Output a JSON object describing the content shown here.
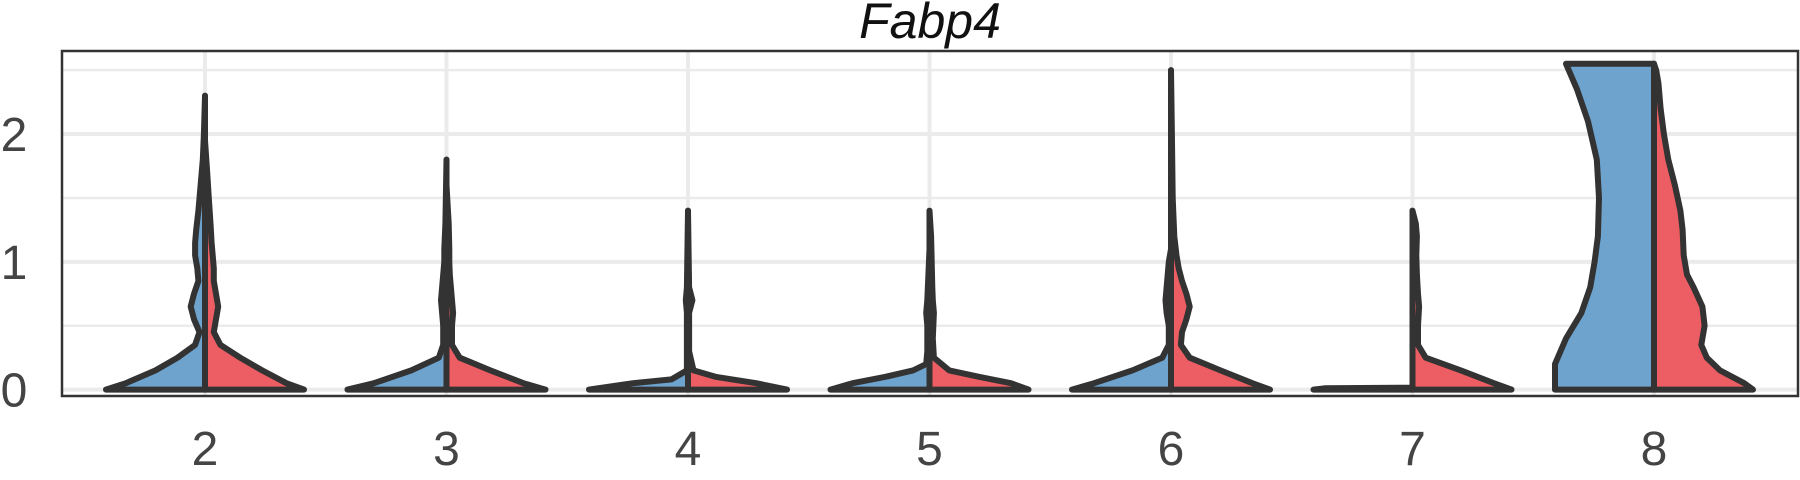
{
  "chart_data": {
    "type": "split-violin",
    "title": "Fabp4",
    "xlabel": "",
    "ylabel": "",
    "categories": [
      "2",
      "3",
      "4",
      "5",
      "6",
      "7",
      "8"
    ],
    "ylim": [
      -0.05,
      2.65
    ],
    "yticks": [
      0,
      1,
      2
    ],
    "grid": true,
    "legend": "none",
    "colors": {
      "left": "#6EA3CE",
      "right": "#EC5E63",
      "outline": "#333333",
      "grid": "#EBEBEB"
    },
    "violins": [
      {
        "category": "2",
        "left": {
          "max": 2.3,
          "profile": [
            [
              0,
              0.9
            ],
            [
              0.05,
              0.72
            ],
            [
              0.15,
              0.45
            ],
            [
              0.25,
              0.25
            ],
            [
              0.35,
              0.09
            ],
            [
              0.45,
              0.05
            ],
            [
              0.55,
              0.1
            ],
            [
              0.65,
              0.13
            ],
            [
              0.75,
              0.1
            ],
            [
              0.85,
              0.06
            ],
            [
              0.95,
              0.07
            ],
            [
              1.05,
              0.09
            ],
            [
              1.15,
              0.09
            ],
            [
              1.25,
              0.08
            ],
            [
              1.4,
              0.06
            ],
            [
              1.6,
              0.04
            ],
            [
              1.8,
              0.02
            ],
            [
              2.0,
              0.01
            ],
            [
              2.3,
              0
            ]
          ]
        },
        "right": {
          "max": 1.95,
          "profile": [
            [
              0,
              0.9
            ],
            [
              0.05,
              0.74
            ],
            [
              0.15,
              0.52
            ],
            [
              0.25,
              0.32
            ],
            [
              0.35,
              0.14
            ],
            [
              0.45,
              0.08
            ],
            [
              0.55,
              0.1
            ],
            [
              0.65,
              0.12
            ],
            [
              0.75,
              0.1
            ],
            [
              0.85,
              0.08
            ],
            [
              0.95,
              0.08
            ],
            [
              1.05,
              0.07
            ],
            [
              1.15,
              0.06
            ],
            [
              1.3,
              0.05
            ],
            [
              1.5,
              0.035
            ],
            [
              1.7,
              0.02
            ],
            [
              1.95,
              0
            ]
          ]
        }
      },
      {
        "category": "3",
        "left": {
          "max": 1.8,
          "profile": [
            [
              0,
              0.9
            ],
            [
              0.05,
              0.66
            ],
            [
              0.15,
              0.32
            ],
            [
              0.25,
              0.07
            ],
            [
              0.35,
              0.03
            ],
            [
              0.5,
              0.03
            ],
            [
              0.6,
              0.04
            ],
            [
              0.7,
              0.05
            ],
            [
              0.8,
              0.04
            ],
            [
              0.9,
              0.03
            ],
            [
              1.0,
              0.02
            ],
            [
              1.1,
              0.02
            ],
            [
              1.3,
              0.01
            ],
            [
              1.8,
              0
            ]
          ]
        },
        "right": {
          "max": 1.6,
          "profile": [
            [
              0,
              0.9
            ],
            [
              0.05,
              0.7
            ],
            [
              0.15,
              0.4
            ],
            [
              0.25,
              0.12
            ],
            [
              0.35,
              0.05
            ],
            [
              0.5,
              0.05
            ],
            [
              0.6,
              0.06
            ],
            [
              0.7,
              0.05
            ],
            [
              0.8,
              0.04
            ],
            [
              0.9,
              0.03
            ],
            [
              1.0,
              0.025
            ],
            [
              1.1,
              0.025
            ],
            [
              1.3,
              0.02
            ],
            [
              1.6,
              0
            ]
          ]
        }
      },
      {
        "category": "4",
        "left": {
          "max": 1.4,
          "profile": [
            [
              0,
              0.9
            ],
            [
              0.05,
              0.5
            ],
            [
              0.08,
              0.15
            ],
            [
              0.15,
              0.01
            ],
            [
              0.6,
              0.01
            ],
            [
              0.7,
              0.02
            ],
            [
              0.8,
              0.01
            ],
            [
              1.4,
              0
            ]
          ]
        },
        "right": {
          "max": 1.4,
          "profile": [
            [
              0,
              0.9
            ],
            [
              0.05,
              0.62
            ],
            [
              0.1,
              0.25
            ],
            [
              0.15,
              0.05
            ],
            [
              0.3,
              0.01
            ],
            [
              0.6,
              0.01
            ],
            [
              0.7,
              0.04
            ],
            [
              0.8,
              0.01
            ],
            [
              1.4,
              0
            ]
          ]
        }
      },
      {
        "category": "5",
        "left": {
          "max": 1.1,
          "profile": [
            [
              0,
              0.9
            ],
            [
              0.05,
              0.7
            ],
            [
              0.1,
              0.4
            ],
            [
              0.15,
              0.15
            ],
            [
              0.2,
              0.03
            ],
            [
              0.3,
              0.02
            ],
            [
              0.5,
              0.02
            ],
            [
              0.6,
              0.03
            ],
            [
              0.7,
              0.02
            ],
            [
              1.1,
              0
            ]
          ]
        },
        "right": {
          "max": 1.4,
          "profile": [
            [
              0,
              0.9
            ],
            [
              0.05,
              0.74
            ],
            [
              0.1,
              0.45
            ],
            [
              0.15,
              0.18
            ],
            [
              0.25,
              0.04
            ],
            [
              0.4,
              0.03
            ],
            [
              0.6,
              0.04
            ],
            [
              0.7,
              0.03
            ],
            [
              0.8,
              0.025
            ],
            [
              1.0,
              0.02
            ],
            [
              1.2,
              0.015
            ],
            [
              1.4,
              0
            ]
          ]
        }
      },
      {
        "category": "6",
        "left": {
          "max": 1.1,
          "profile": [
            [
              0,
              0.9
            ],
            [
              0.05,
              0.7
            ],
            [
              0.15,
              0.35
            ],
            [
              0.25,
              0.08
            ],
            [
              0.35,
              0.02
            ],
            [
              0.5,
              0.02
            ],
            [
              0.6,
              0.04
            ],
            [
              0.7,
              0.05
            ],
            [
              0.8,
              0.04
            ],
            [
              0.9,
              0.03
            ],
            [
              1.0,
              0.02
            ],
            [
              1.1,
              0
            ]
          ]
        },
        "right": {
          "max": 2.5,
          "profile": [
            [
              0,
              0.9
            ],
            [
              0.05,
              0.74
            ],
            [
              0.15,
              0.45
            ],
            [
              0.25,
              0.17
            ],
            [
              0.35,
              0.09
            ],
            [
              0.45,
              0.1
            ],
            [
              0.55,
              0.14
            ],
            [
              0.65,
              0.17
            ],
            [
              0.75,
              0.14
            ],
            [
              0.85,
              0.1
            ],
            [
              0.95,
              0.07
            ],
            [
              1.05,
              0.05
            ],
            [
              1.2,
              0.03
            ],
            [
              1.5,
              0.015
            ],
            [
              2.0,
              0.008
            ],
            [
              2.5,
              0
            ]
          ]
        }
      },
      {
        "category": "7",
        "left": {
          "max": 0,
          "profile": [
            [
              0,
              0.9
            ],
            [
              0.01,
              0.8
            ],
            [
              0.015,
              0
            ]
          ]
        },
        "right": {
          "max": 1.4,
          "profile": [
            [
              0,
              0.9
            ],
            [
              0.05,
              0.74
            ],
            [
              0.15,
              0.44
            ],
            [
              0.25,
              0.12
            ],
            [
              0.35,
              0.05
            ],
            [
              0.5,
              0.05
            ],
            [
              0.65,
              0.06
            ],
            [
              0.75,
              0.05
            ],
            [
              0.9,
              0.04
            ],
            [
              1.05,
              0.035
            ],
            [
              1.2,
              0.04
            ],
            [
              1.3,
              0.03
            ],
            [
              1.4,
              0
            ]
          ]
        }
      },
      {
        "category": "8",
        "left": {
          "max": 2.55,
          "profile": [
            [
              0,
              0.9
            ],
            [
              0.2,
              0.9
            ],
            [
              0.4,
              0.8
            ],
            [
              0.6,
              0.66
            ],
            [
              0.8,
              0.58
            ],
            [
              1.0,
              0.54
            ],
            [
              1.2,
              0.51
            ],
            [
              1.5,
              0.5
            ],
            [
              1.8,
              0.52
            ],
            [
              2.1,
              0.6
            ],
            [
              2.35,
              0.7
            ],
            [
              2.55,
              0.8
            ],
            [
              2.55,
              0
            ]
          ]
        },
        "right": {
          "max": 2.55,
          "profile": [
            [
              0,
              0.9
            ],
            [
              0.05,
              0.82
            ],
            [
              0.15,
              0.6
            ],
            [
              0.25,
              0.48
            ],
            [
              0.35,
              0.43
            ],
            [
              0.5,
              0.46
            ],
            [
              0.65,
              0.44
            ],
            [
              0.8,
              0.36
            ],
            [
              0.9,
              0.3
            ],
            [
              1.05,
              0.27
            ],
            [
              1.25,
              0.26
            ],
            [
              1.4,
              0.24
            ],
            [
              1.6,
              0.19
            ],
            [
              1.8,
              0.13
            ],
            [
              2.0,
              0.09
            ],
            [
              2.2,
              0.06
            ],
            [
              2.4,
              0.04
            ],
            [
              2.5,
              0.02
            ],
            [
              2.55,
              0
            ]
          ]
        }
      }
    ]
  }
}
